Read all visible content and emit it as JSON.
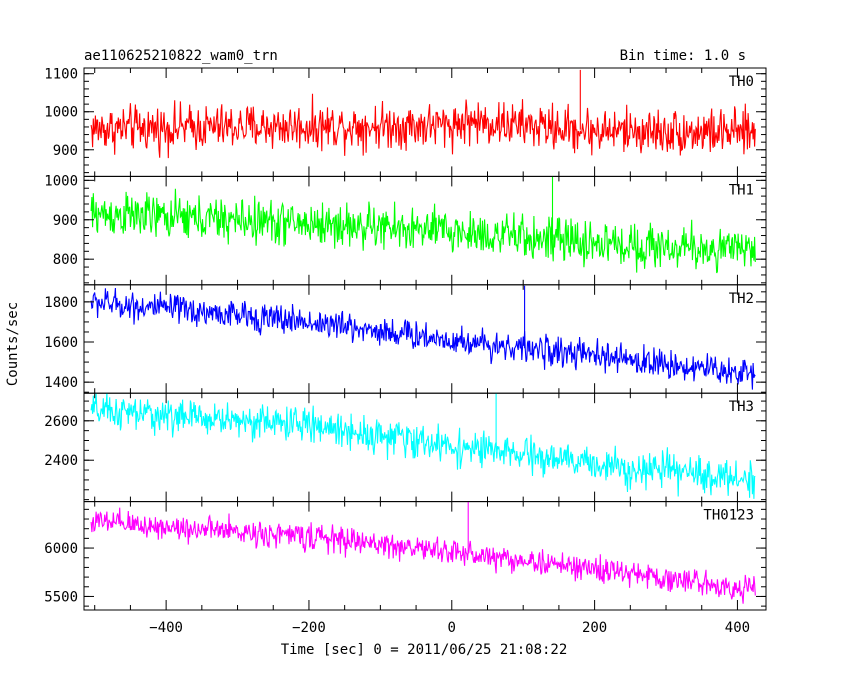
{
  "chart_data": {
    "type": "line",
    "title": "ae110625210822_wam0_trn",
    "subtitle": "Bin time: 1.0 s",
    "xlabel": "Time [sec] 0 = 2011/06/25 21:08:22",
    "ylabel": "Counts/sec",
    "xlim": [
      -515,
      440
    ],
    "x_ticks": [
      -400,
      -200,
      0,
      200,
      400
    ],
    "x_tick_labels": [
      "−400",
      "−200",
      "0",
      "200",
      "400"
    ],
    "x_range": [
      -505,
      425
    ],
    "grid": false,
    "panels": [
      {
        "name": "TH0",
        "color": "#ff0000",
        "ylim": [
          830,
          1115
        ],
        "yticks": [
          900,
          1000,
          1100
        ],
        "ytick_labels": [
          "900",
          "1000",
          "1100"
        ],
        "trend": [
          [
            -505,
            955
          ],
          [
            -300,
            960
          ],
          [
            0,
            965
          ],
          [
            20,
            975
          ],
          [
            200,
            950
          ],
          [
            425,
            945
          ]
        ],
        "noise": 42,
        "peak": 1110,
        "trough": 830
      },
      {
        "name": "TH1",
        "color": "#00ff00",
        "ylim": [
          735,
          1010
        ],
        "yticks": [
          800,
          900,
          1000
        ],
        "ytick_labels": [
          "800",
          "900",
          "1000"
        ],
        "trend": [
          [
            -505,
            915
          ],
          [
            -200,
            890
          ],
          [
            0,
            870
          ],
          [
            200,
            840
          ],
          [
            425,
            820
          ]
        ],
        "noise": 40,
        "peak": 1015,
        "trough": 745
      },
      {
        "name": "TH2",
        "color": "#0000ff",
        "ylim": [
          1345,
          1885
        ],
        "yticks": [
          1400,
          1600,
          1800
        ],
        "ytick_labels": [
          "1400",
          "1600",
          "1800"
        ],
        "trend": [
          [
            -505,
            1800
          ],
          [
            -200,
            1700
          ],
          [
            0,
            1610
          ],
          [
            200,
            1530
          ],
          [
            425,
            1440
          ]
        ],
        "noise": 52,
        "peak": 1880,
        "trough": 1355
      },
      {
        "name": "TH3",
        "color": "#00ffff",
        "ylim": [
          2190,
          2740
        ],
        "yticks": [
          2400,
          2600
        ],
        "ytick_labels": [
          "2400",
          "2600"
        ],
        "trend": [
          [
            -505,
            2650
          ],
          [
            -200,
            2580
          ],
          [
            0,
            2470
          ],
          [
            200,
            2380
          ],
          [
            425,
            2300
          ]
        ],
        "noise": 62,
        "peak": 2740,
        "trough": 2200
      },
      {
        "name": "TH0123",
        "color": "#ff00ff",
        "ylim": [
          5360,
          6480
        ],
        "yticks": [
          5500,
          6000
        ],
        "ytick_labels": [
          "5500",
          "6000"
        ],
        "trend": [
          [
            -505,
            6270
          ],
          [
            -200,
            6120
          ],
          [
            0,
            5960
          ],
          [
            200,
            5780
          ],
          [
            425,
            5570
          ]
        ],
        "noise": 95,
        "peak": 6480,
        "trough": 5400
      }
    ]
  }
}
